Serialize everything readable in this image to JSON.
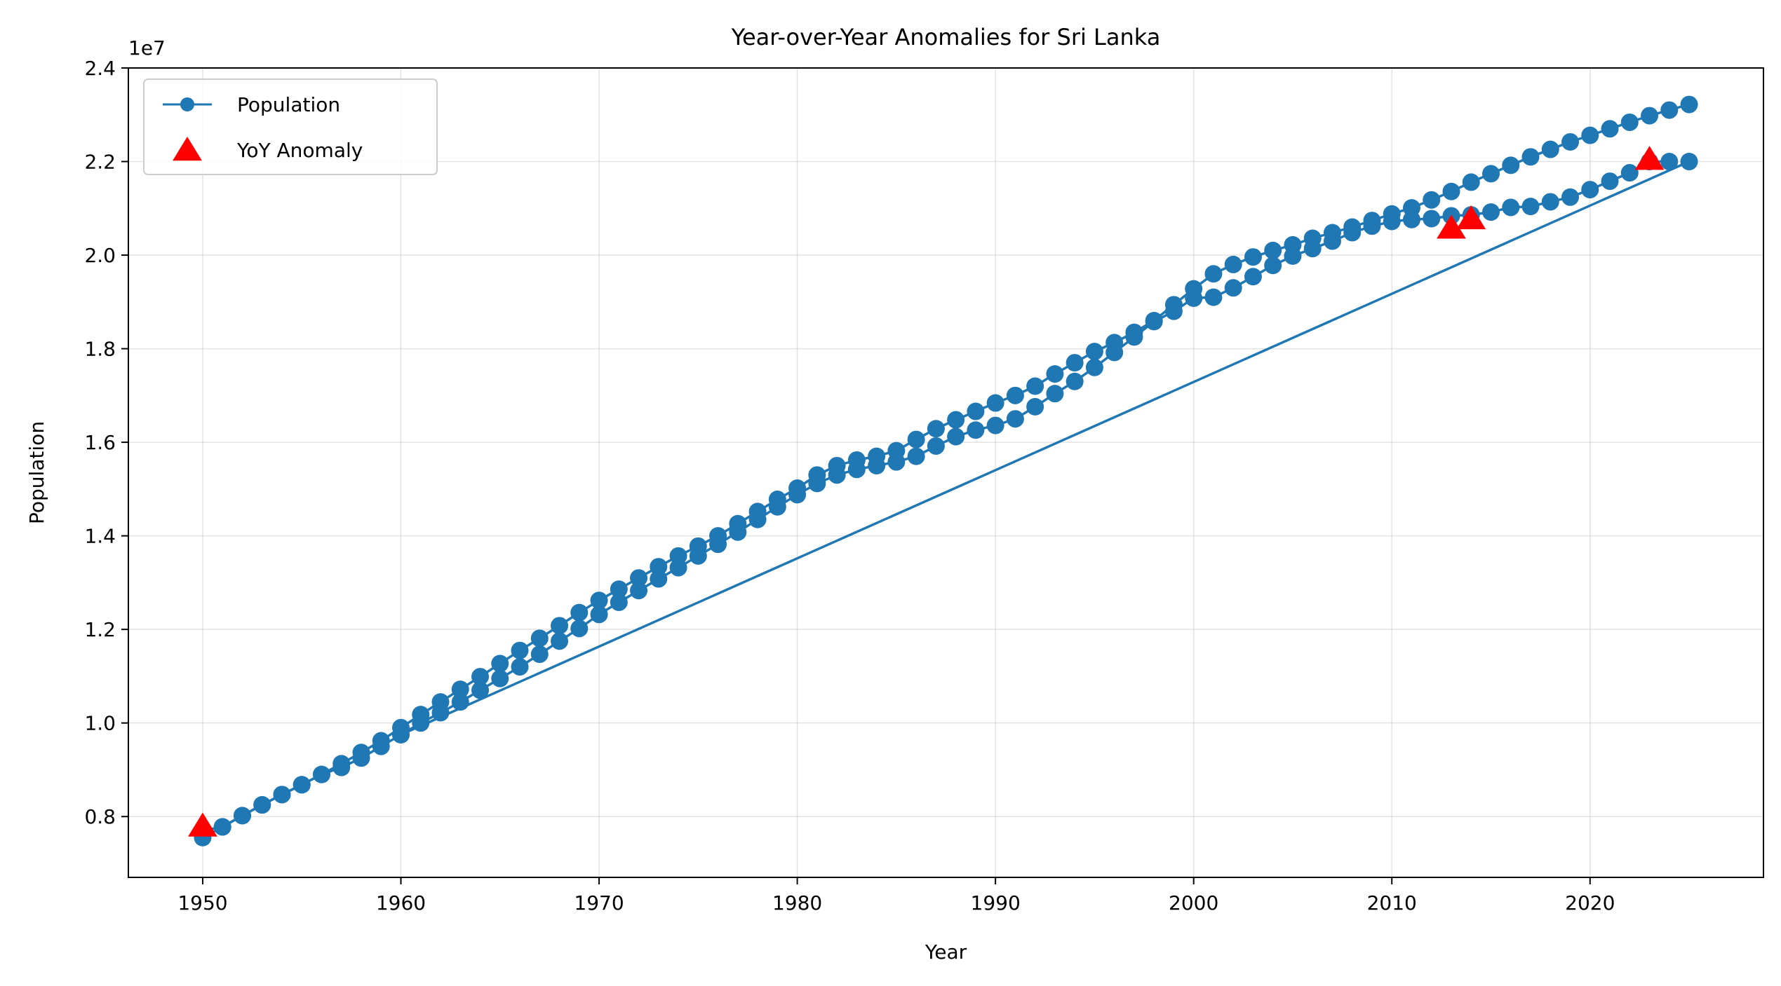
{
  "chart_data": {
    "type": "line",
    "title": "Year-over-Year Anomalies for Sri Lanka",
    "xlabel": "Year",
    "ylabel": "Population",
    "y_offset_label": "1e7",
    "xlim": [
      1946.25,
      2028.75
    ],
    "ylim": [
      6.7,
      24.0
    ],
    "x_ticks": [
      1950,
      1960,
      1970,
      1980,
      1990,
      2000,
      2010,
      2020
    ],
    "x_tick_labels": [
      "1950",
      "1960",
      "1970",
      "1980",
      "1990",
      "2000",
      "2010",
      "2020"
    ],
    "y_ticks": [
      8,
      10,
      12,
      14,
      16,
      18,
      20,
      22,
      24
    ],
    "y_tick_labels": [
      "0.8",
      "1.0",
      "1.2",
      "1.4",
      "1.6",
      "1.8",
      "2.0",
      "2.2",
      "2.4"
    ],
    "y_unit_note": "y values in millions (axis scaled ×1e7)",
    "grid": true,
    "legend_position": "top-left",
    "series": [
      {
        "name": "Population",
        "color": "#1f77b4",
        "marker": "circle",
        "segments": [
          {
            "x": [
              1950,
              1951,
              1952,
              1953,
              1954,
              1955,
              1956,
              1957,
              1958,
              1959,
              1960,
              1961,
              1962,
              1963,
              1964,
              1965,
              1966,
              1967,
              1968,
              1969,
              1970,
              1971,
              1972,
              1973,
              1974,
              1975,
              1976,
              1977,
              1978,
              1979,
              1980,
              1981,
              1982,
              1983,
              1984,
              1985,
              1986,
              1987,
              1988,
              1989,
              1990,
              1991,
              1992,
              1993,
              1994,
              1995,
              1996,
              1997,
              1998,
              1999,
              2000,
              2001,
              2002,
              2003,
              2004,
              2005,
              2006,
              2007,
              2008,
              2009,
              2010,
              2011,
              2012,
              2013,
              2014,
              2015,
              2016,
              2017,
              2018,
              2019,
              2020,
              2021,
              2022,
              2023,
              2024,
              2025
            ],
            "y": [
              7.55,
              7.78,
              8.02,
              8.25,
              8.47,
              8.68,
              8.9,
              9.13,
              9.37,
              9.62,
              9.9,
              10.18,
              10.45,
              10.72,
              10.99,
              11.27,
              11.55,
              11.81,
              12.08,
              12.36,
              12.62,
              12.86,
              13.1,
              13.34,
              13.57,
              13.78,
              14.0,
              14.26,
              14.52,
              14.78,
              15.02,
              15.3,
              15.5,
              15.62,
              15.7,
              15.82,
              16.06,
              16.29,
              16.48,
              16.66,
              16.84,
              17.0,
              17.2,
              17.46,
              17.7,
              17.94,
              18.13,
              18.35,
              18.6,
              18.94,
              19.28,
              19.6,
              19.8,
              19.96,
              20.1,
              20.22,
              20.36,
              20.48,
              20.6,
              20.74,
              20.88,
              21.01,
              21.18,
              21.36,
              21.56,
              21.74,
              21.92,
              22.1,
              22.26,
              22.42,
              22.56,
              22.7,
              22.84,
              22.98,
              23.1,
              23.22
            ]
          },
          {
            "x": [
              1950,
              1951,
              1952,
              1953,
              1954,
              1955,
              1956,
              1957,
              1958,
              1959,
              1960,
              1961,
              1962,
              1963,
              1964,
              1965,
              1966,
              1967,
              1968,
              1969,
              1970,
              1971,
              1972,
              1973,
              1974,
              1975,
              1976,
              1977,
              1978,
              1979,
              1980,
              1981,
              1982,
              1983,
              1984,
              1985,
              1986,
              1987,
              1988,
              1989,
              1990,
              1991,
              1992,
              1993,
              1994,
              1995,
              1996,
              1997,
              1998,
              1999,
              2000,
              2001,
              2002,
              2003,
              2004,
              2005,
              2006,
              2007,
              2008,
              2009,
              2010,
              2011,
              2012,
              2013,
              2014,
              2015,
              2016,
              2017,
              2018,
              2019,
              2020,
              2021,
              2022,
              2023,
              2024
            ],
            "y": [
              7.7,
              7.78,
              8.02,
              8.25,
              8.47,
              8.68,
              8.9,
              9.05,
              9.25,
              9.5,
              9.75,
              10.0,
              10.22,
              10.45,
              10.7,
              10.95,
              11.2,
              11.47,
              11.75,
              12.02,
              12.32,
              12.58,
              12.83,
              13.08,
              13.32,
              13.57,
              13.82,
              14.08,
              14.35,
              14.62,
              14.88,
              15.12,
              15.3,
              15.42,
              15.5,
              15.58,
              15.7,
              15.92,
              16.12,
              16.26,
              16.36,
              16.5,
              16.76,
              17.04,
              17.3,
              17.6,
              17.92,
              18.25,
              18.58,
              18.8,
              19.08,
              19.1,
              19.3,
              19.54,
              19.78,
              19.98,
              20.14,
              20.3,
              20.48,
              20.62,
              20.72,
              20.76,
              20.78,
              20.84,
              20.86,
              20.92,
              21.02,
              21.04,
              21.14,
              21.24,
              21.4,
              21.58,
              21.76,
              22.0,
              22.0
            ]
          },
          {
            "x": [
              1960,
              2025
            ],
            "y": [
              9.75,
              22.0
            ]
          }
        ]
      },
      {
        "name": "YoY Anomaly",
        "color": "#ff0000",
        "marker": "triangle",
        "x": [
          1950,
          2013,
          2014,
          2023
        ],
        "y": [
          7.8,
          20.58,
          20.78,
          22.05
        ]
      }
    ]
  }
}
